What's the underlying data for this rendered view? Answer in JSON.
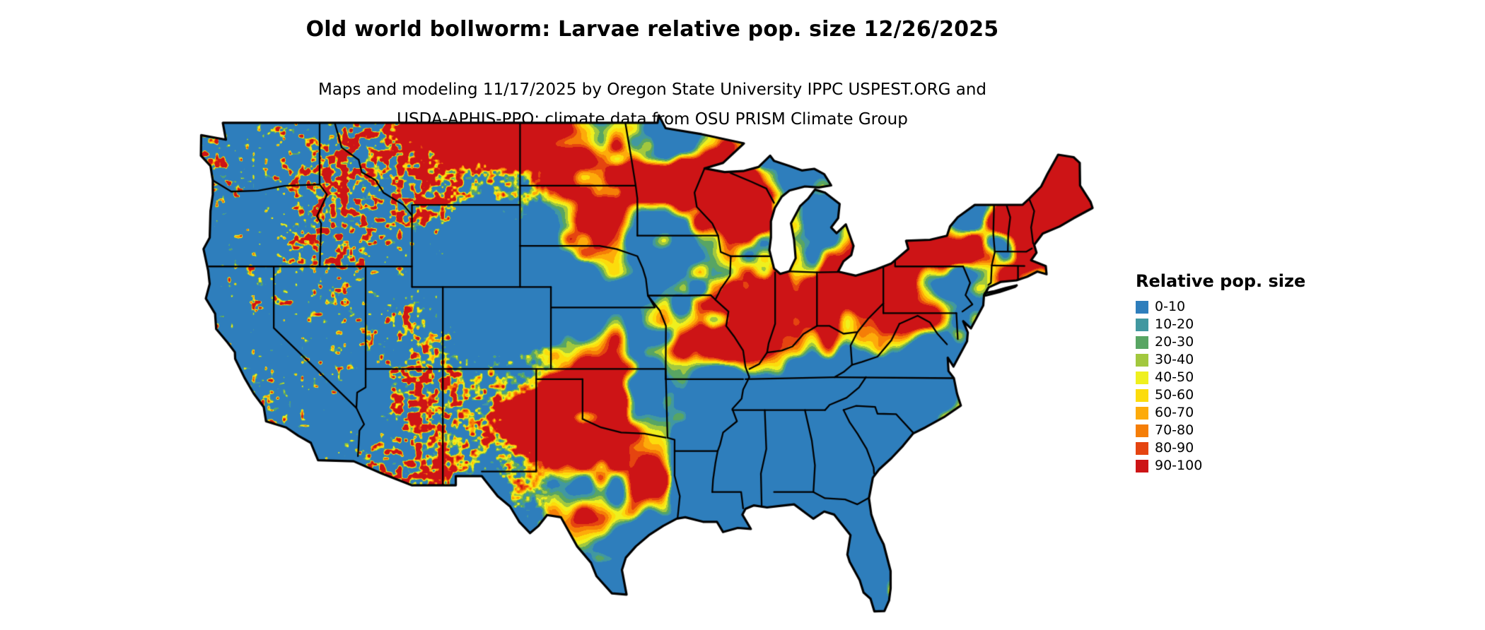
{
  "title": "Old world bollworm: Larvae relative pop. size 12/26/2025",
  "subtitle": {
    "line1": "Maps and modeling 11/17/2025 by Oregon State University IPPC USPEST.ORG and",
    "line2": "USDA-APHIS-PPQ; climate data from OSU PRISM Climate Group"
  },
  "legend": {
    "title": "Relative pop. size",
    "items": [
      {
        "label": "0-10",
        "color": "#2e7ebc"
      },
      {
        "label": "10-20",
        "color": "#4198a0"
      },
      {
        "label": "20-30",
        "color": "#58a563"
      },
      {
        "label": "30-40",
        "color": "#a2c83e"
      },
      {
        "label": "40-50",
        "color": "#eff01e"
      },
      {
        "label": "50-60",
        "color": "#fcdc0c"
      },
      {
        "label": "60-70",
        "color": "#fdab0a"
      },
      {
        "label": "70-80",
        "color": "#f57e07"
      },
      {
        "label": "80-90",
        "color": "#e54410"
      },
      {
        "label": "90-100",
        "color": "#cd1416"
      }
    ]
  },
  "map": {
    "outline_color": "#000000",
    "water_color": "#ffffff"
  }
}
